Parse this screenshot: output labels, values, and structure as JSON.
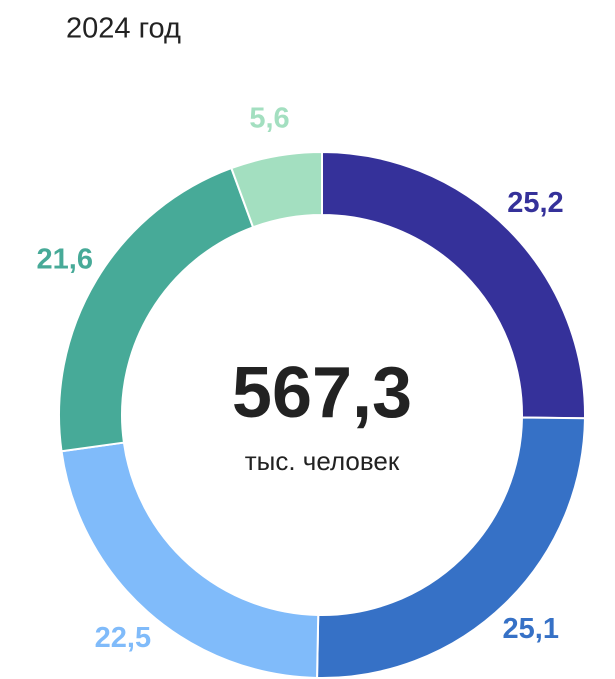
{
  "chart_data": {
    "type": "pie",
    "donut": true,
    "title": "2024 год",
    "center_text": "567,3",
    "center_subtext": "тыс. человек",
    "values": [
      25.2,
      25.1,
      22.5,
      21.6,
      5.6
    ],
    "value_labels": [
      "25,2",
      "25,1",
      "22,5",
      "21,6",
      "5,6"
    ],
    "colors": [
      "#35319a",
      "#3671c6",
      "#80bbfa",
      "#47aa98",
      "#a3dfc0"
    ]
  }
}
